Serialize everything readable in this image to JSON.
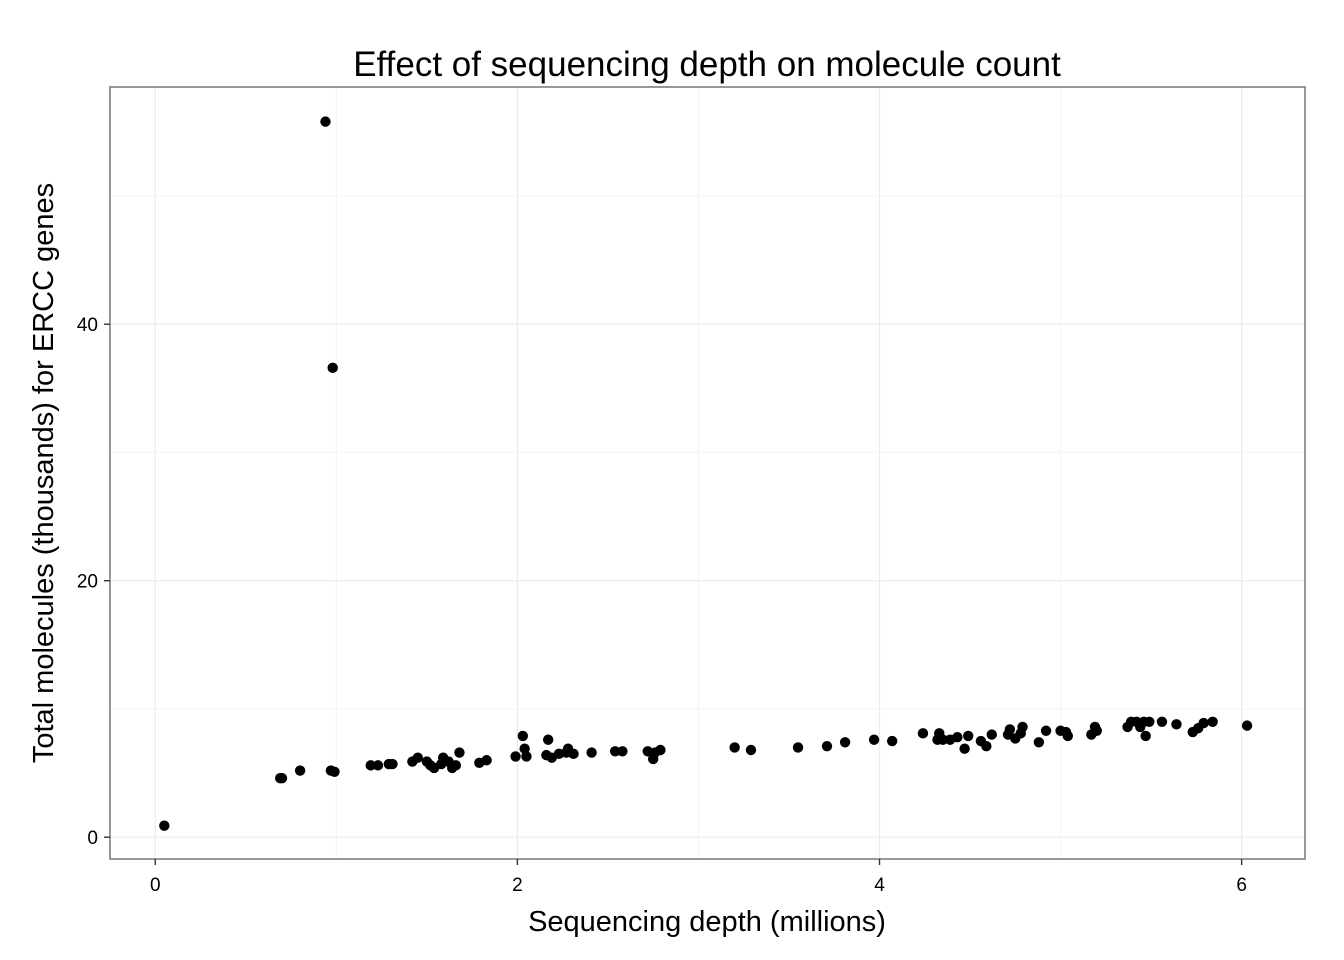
{
  "chart_data": {
    "type": "scatter",
    "title": "Effect of sequencing depth on molecule count",
    "xlabel": "Sequencing depth (millions)",
    "ylabel": "Total molecules (thousands) for ERCC genes",
    "xlim": [
      -0.25,
      6.35
    ],
    "ylim": [
      -1.7,
      58.5
    ],
    "x_ticks": [
      0,
      2,
      4,
      6
    ],
    "x_tick_labels": [
      "0",
      "2",
      "4",
      "6"
    ],
    "y_ticks": [
      0,
      20,
      40
    ],
    "y_tick_labels": [
      "0",
      "20",
      "40"
    ],
    "x_minor": [
      1,
      3,
      5
    ],
    "y_minor": [
      10,
      30,
      50
    ],
    "grid": true,
    "legend": "none",
    "point_color": "#000000",
    "series": [
      {
        "points": [
          [
            0.05,
            0.9
          ],
          [
            0.94,
            55.8
          ],
          [
            0.98,
            36.6
          ],
          [
            0.69,
            4.6
          ],
          [
            0.7,
            4.6
          ],
          [
            0.8,
            5.2
          ],
          [
            0.97,
            5.2
          ],
          [
            0.99,
            5.1
          ],
          [
            1.19,
            5.6
          ],
          [
            1.23,
            5.6
          ],
          [
            1.29,
            5.7
          ],
          [
            1.31,
            5.7
          ],
          [
            1.42,
            5.9
          ],
          [
            1.45,
            6.2
          ],
          [
            1.5,
            5.9
          ],
          [
            1.52,
            5.6
          ],
          [
            1.54,
            5.4
          ],
          [
            1.58,
            5.7
          ],
          [
            1.59,
            6.2
          ],
          [
            1.62,
            5.9
          ],
          [
            1.64,
            5.4
          ],
          [
            1.66,
            5.6
          ],
          [
            1.68,
            6.6
          ],
          [
            1.79,
            5.8
          ],
          [
            1.83,
            6.0
          ],
          [
            1.99,
            6.3
          ],
          [
            2.03,
            7.9
          ],
          [
            2.04,
            6.9
          ],
          [
            2.05,
            6.3
          ],
          [
            2.16,
            6.4
          ],
          [
            2.17,
            7.6
          ],
          [
            2.19,
            6.2
          ],
          [
            2.23,
            6.5
          ],
          [
            2.27,
            6.6
          ],
          [
            2.28,
            6.9
          ],
          [
            2.31,
            6.5
          ],
          [
            2.41,
            6.6
          ],
          [
            2.54,
            6.7
          ],
          [
            2.58,
            6.7
          ],
          [
            2.72,
            6.7
          ],
          [
            2.75,
            6.1
          ],
          [
            2.76,
            6.6
          ],
          [
            2.79,
            6.8
          ],
          [
            3.2,
            7.0
          ],
          [
            3.29,
            6.8
          ],
          [
            3.55,
            7.0
          ],
          [
            3.71,
            7.1
          ],
          [
            3.81,
            7.4
          ],
          [
            3.97,
            7.6
          ],
          [
            4.07,
            7.5
          ],
          [
            4.24,
            8.1
          ],
          [
            4.32,
            7.6
          ],
          [
            4.33,
            8.1
          ],
          [
            4.35,
            7.6
          ],
          [
            4.39,
            7.6
          ],
          [
            4.43,
            7.8
          ],
          [
            4.47,
            6.9
          ],
          [
            4.49,
            7.9
          ],
          [
            4.56,
            7.5
          ],
          [
            4.59,
            7.1
          ],
          [
            4.62,
            8.0
          ],
          [
            4.71,
            8.0
          ],
          [
            4.72,
            8.4
          ],
          [
            4.75,
            7.7
          ],
          [
            4.78,
            8.1
          ],
          [
            4.79,
            8.6
          ],
          [
            4.88,
            7.4
          ],
          [
            4.92,
            8.3
          ],
          [
            5.0,
            8.3
          ],
          [
            5.03,
            8.2
          ],
          [
            5.04,
            7.9
          ],
          [
            5.17,
            8.0
          ],
          [
            5.19,
            8.6
          ],
          [
            5.2,
            8.3
          ],
          [
            5.37,
            8.6
          ],
          [
            5.39,
            9.0
          ],
          [
            5.42,
            9.0
          ],
          [
            5.44,
            8.6
          ],
          [
            5.46,
            9.0
          ],
          [
            5.47,
            7.9
          ],
          [
            5.49,
            9.0
          ],
          [
            5.56,
            9.0
          ],
          [
            5.64,
            8.8
          ],
          [
            5.73,
            8.2
          ],
          [
            5.76,
            8.5
          ],
          [
            5.79,
            8.9
          ],
          [
            5.84,
            9.0
          ],
          [
            6.03,
            8.7
          ]
        ]
      }
    ]
  }
}
